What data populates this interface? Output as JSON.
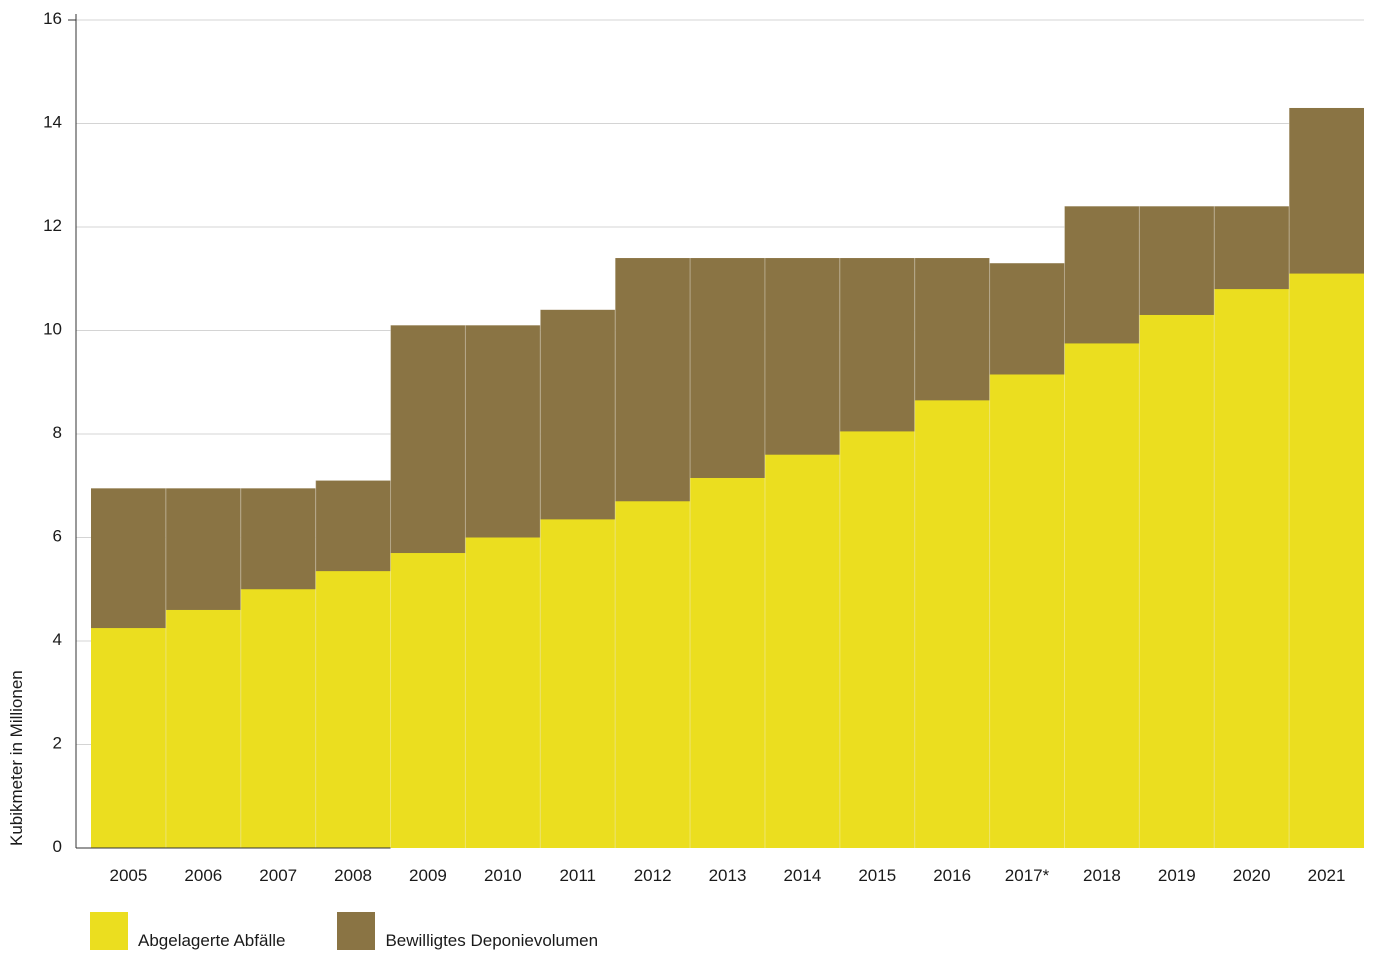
{
  "chart_data": {
    "type": "area",
    "stacked": false,
    "categories": [
      "2005",
      "2006",
      "2007",
      "2008",
      "2009",
      "2010",
      "2011",
      "2012",
      "2013",
      "2014",
      "2015",
      "2016",
      "2017*",
      "2018",
      "2019",
      "2020",
      "2021"
    ],
    "series": [
      {
        "name": "Bewilligtes Deponievolumen",
        "color": "#8a7444",
        "values": [
          6.95,
          6.95,
          6.95,
          7.1,
          10.1,
          10.1,
          10.4,
          11.4,
          11.4,
          11.4,
          11.4,
          11.4,
          11.3,
          12.4,
          12.4,
          12.4,
          14.3
        ]
      },
      {
        "name": "Abgelagerte Abfälle",
        "color": "#ebde1f",
        "values": [
          4.25,
          4.6,
          5.0,
          5.35,
          5.7,
          6.0,
          6.35,
          6.7,
          7.15,
          7.6,
          8.05,
          8.65,
          9.15,
          9.75,
          10.3,
          10.8,
          11.1
        ]
      }
    ],
    "xlabel": "",
    "ylabel": "Kubikmeter in Millionen",
    "ylim": [
      0,
      16
    ],
    "yticks": [
      0,
      2,
      4,
      6,
      8,
      10,
      12,
      14,
      16
    ],
    "grid": true,
    "legend_position": "bottom-left"
  },
  "legend": {
    "items": [
      {
        "label": "Abgelagerte Abfälle",
        "color": "#ebde1f"
      },
      {
        "label": "Bewilligtes Deponievolumen",
        "color": "#8a7444"
      }
    ]
  }
}
